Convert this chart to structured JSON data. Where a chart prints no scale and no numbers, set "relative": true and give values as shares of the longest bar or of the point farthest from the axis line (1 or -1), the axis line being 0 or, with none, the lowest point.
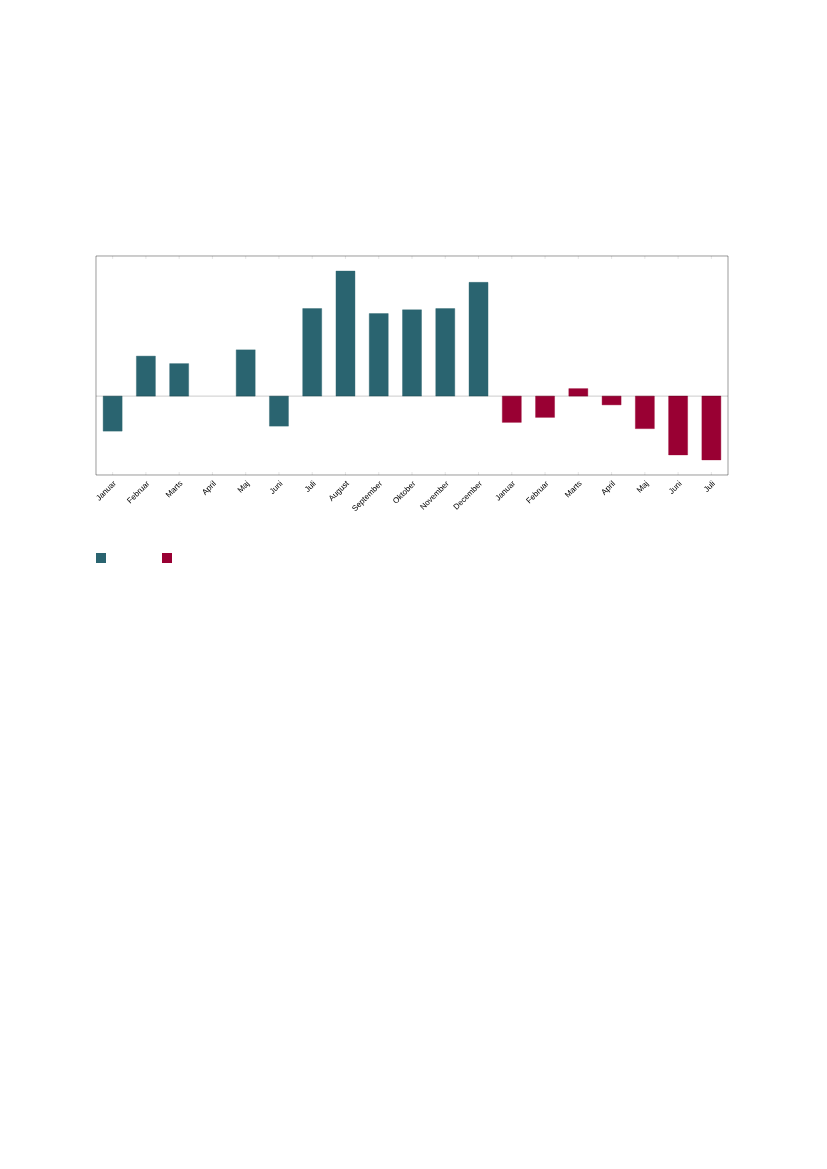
{
  "chart_data": {
    "type": "bar",
    "relative": true,
    "categories": [
      "Januar",
      "Februar",
      "Marts",
      "April",
      "Maj",
      "Juni",
      "Juli",
      "August",
      "September",
      "Oktober",
      "November",
      "December",
      "Januar",
      "Februar",
      "Marts",
      "April",
      "Maj",
      "Juni",
      "Juli"
    ],
    "series": [
      {
        "color": "#2a6470",
        "values": [
          -0.28,
          0.32,
          0.26,
          null,
          0.37,
          -0.24,
          0.7,
          1,
          0.66,
          0.69,
          0.7,
          0.91,
          null,
          null,
          null,
          null,
          null,
          null,
          null
        ]
      },
      {
        "color": "#990033",
        "values": [
          null,
          null,
          null,
          null,
          null,
          null,
          null,
          null,
          null,
          null,
          null,
          null,
          -0.21,
          -0.17,
          0.06,
          -0.07,
          -0.26,
          -0.47,
          -0.51
        ]
      }
    ]
  }
}
